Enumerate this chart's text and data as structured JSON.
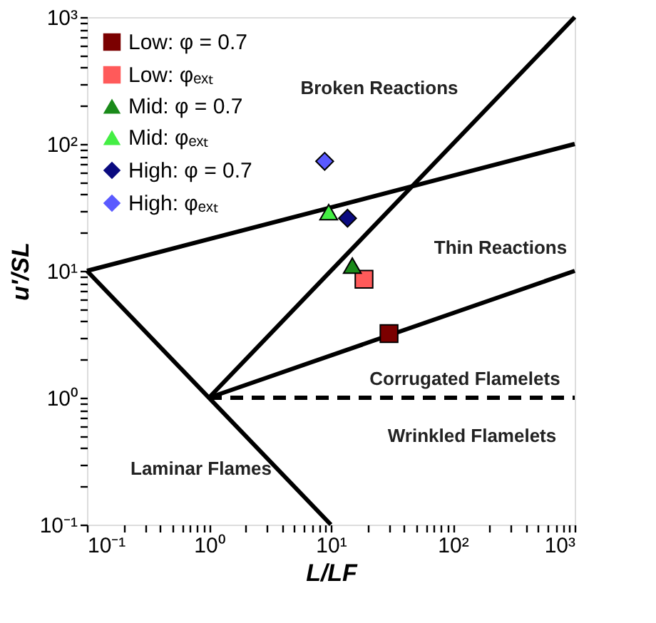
{
  "chart_data": {
    "type": "scatter",
    "xlabel": "L/LF",
    "ylabel": "u′/SL",
    "log": "xy",
    "grid": false,
    "legend": "top left",
    "xlim": [
      0.1,
      1000
    ],
    "ylim": [
      0.1,
      1000
    ],
    "xticks": [
      {
        "value": 0.1,
        "label": "10⁻¹"
      },
      {
        "value": 0.2,
        "label": null
      },
      {
        "value": 0.3,
        "label": null
      },
      {
        "value": 0.4,
        "label": null
      },
      {
        "value": 0.5,
        "label": null
      },
      {
        "value": 0.6,
        "label": null
      },
      {
        "value": 0.7,
        "label": null
      },
      {
        "value": 0.8,
        "label": null
      },
      {
        "value": 0.9,
        "label": null
      },
      {
        "value": 1,
        "label": "10⁰"
      },
      {
        "value": 2,
        "label": null
      },
      {
        "value": 3,
        "label": null
      },
      {
        "value": 4,
        "label": null
      },
      {
        "value": 5,
        "label": null
      },
      {
        "value": 6,
        "label": null
      },
      {
        "value": 7,
        "label": null
      },
      {
        "value": 8,
        "label": null
      },
      {
        "value": 9,
        "label": null
      },
      {
        "value": 10,
        "label": "10¹"
      },
      {
        "value": 20,
        "label": null
      },
      {
        "value": 30,
        "label": null
      },
      {
        "value": 40,
        "label": null
      },
      {
        "value": 50,
        "label": null
      },
      {
        "value": 60,
        "label": null
      },
      {
        "value": 70,
        "label": null
      },
      {
        "value": 80,
        "label": null
      },
      {
        "value": 90,
        "label": null
      },
      {
        "value": 100,
        "label": "10²"
      },
      {
        "value": 200,
        "label": null
      },
      {
        "value": 300,
        "label": null
      },
      {
        "value": 400,
        "label": null
      },
      {
        "value": 500,
        "label": null
      },
      {
        "value": 600,
        "label": null
      },
      {
        "value": 700,
        "label": null
      },
      {
        "value": 800,
        "label": null
      },
      {
        "value": 900,
        "label": null
      },
      {
        "value": 1000,
        "label": "10³"
      }
    ],
    "yticks": [
      {
        "value": 0.1,
        "label": "10⁻¹"
      },
      {
        "value": 0.2,
        "label": null
      },
      {
        "value": 0.3,
        "label": null
      },
      {
        "value": 0.4,
        "label": null
      },
      {
        "value": 0.5,
        "label": null
      },
      {
        "value": 0.6,
        "label": null
      },
      {
        "value": 0.7,
        "label": null
      },
      {
        "value": 0.8,
        "label": null
      },
      {
        "value": 0.9,
        "label": null
      },
      {
        "value": 1,
        "label": "10⁰"
      },
      {
        "value": 2,
        "label": null
      },
      {
        "value": 3,
        "label": null
      },
      {
        "value": 4,
        "label": null
      },
      {
        "value": 5,
        "label": null
      },
      {
        "value": 6,
        "label": null
      },
      {
        "value": 7,
        "label": null
      },
      {
        "value": 8,
        "label": null
      },
      {
        "value": 9,
        "label": null
      },
      {
        "value": 10,
        "label": "10¹"
      },
      {
        "value": 20,
        "label": null
      },
      {
        "value": 30,
        "label": null
      },
      {
        "value": 40,
        "label": null
      },
      {
        "value": 50,
        "label": null
      },
      {
        "value": 60,
        "label": null
      },
      {
        "value": 70,
        "label": null
      },
      {
        "value": 80,
        "label": null
      },
      {
        "value": 90,
        "label": null
      },
      {
        "value": 100,
        "label": "10²"
      },
      {
        "value": 200,
        "label": null
      },
      {
        "value": 300,
        "label": null
      },
      {
        "value": 400,
        "label": null
      },
      {
        "value": 500,
        "label": null
      },
      {
        "value": 600,
        "label": null
      },
      {
        "value": 700,
        "label": null
      },
      {
        "value": 800,
        "label": null
      },
      {
        "value": 900,
        "label": null
      },
      {
        "value": 1000,
        "label": "10³"
      }
    ],
    "series": [
      {
        "type": "line",
        "color": "#000000",
        "line_style": "solid",
        "x": [
          0.1,
          10
        ],
        "values": [
          10,
          0.1
        ]
      },
      {
        "type": "line",
        "color": "#000000",
        "line_style": "solid",
        "x": [
          1,
          1000
        ],
        "values": [
          1,
          1000
        ]
      },
      {
        "type": "line",
        "color": "#000000",
        "line_style": "solid",
        "x": [
          0.1,
          1000
        ],
        "values": [
          10,
          100
        ]
      },
      {
        "type": "line",
        "color": "#000000",
        "line_style": "solid",
        "x": [
          1,
          1000
        ],
        "values": [
          1,
          10
        ]
      },
      {
        "type": "line",
        "color": "#000000",
        "line_style": "dashed",
        "x": [
          1,
          1000
        ],
        "values": [
          1,
          1
        ]
      },
      {
        "type": "scatter",
        "name": "Low: φ = 0.7",
        "color": "#7b0000",
        "marker": "square",
        "x": [
          30
        ],
        "values": [
          3.2
        ]
      },
      {
        "type": "scatter",
        "name": "Low: φₑₓₜ",
        "color": "#ff5a5a",
        "marker": "square",
        "x": [
          18.7
        ],
        "values": [
          8.6
        ]
      },
      {
        "type": "scatter",
        "name": "Mid: φ = 0.7",
        "color": "#1a8a1a",
        "marker": "triangle",
        "x": [
          15
        ],
        "values": [
          11
        ]
      },
      {
        "type": "scatter",
        "name": "Mid: φₑₓₜ",
        "color": "#44ee44",
        "marker": "triangle",
        "x": [
          9.6
        ],
        "values": [
          29
        ]
      },
      {
        "type": "scatter",
        "name": "High: φ = 0.7",
        "color": "#0a0a80",
        "marker": "diamond",
        "x": [
          13.7
        ],
        "values": [
          26
        ]
      },
      {
        "type": "scatter",
        "name": "High: φₑₓₜ",
        "color": "#5a5aff",
        "marker": "diamond",
        "x": [
          8.9
        ],
        "values": [
          73
        ]
      }
    ],
    "annotations": [
      "Broken Reactions",
      "Thin Reactions",
      "Corrugated Flamelets",
      "Wrinkled Flamelets",
      "Laminar Flames"
    ]
  }
}
